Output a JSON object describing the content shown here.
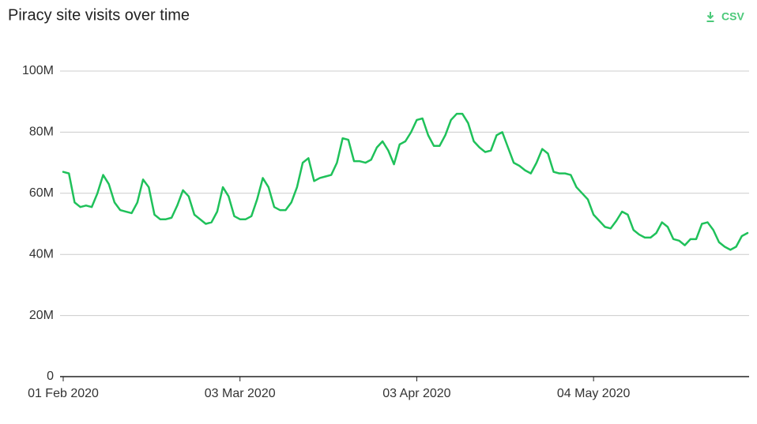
{
  "chart_data": {
    "type": "line",
    "title": "Piracy site visits over time",
    "download_label": "CSV",
    "color": "#1fc15a",
    "grid": true,
    "x": [
      "2020-02-01",
      "2020-02-02",
      "2020-02-03",
      "2020-02-04",
      "2020-02-05",
      "2020-02-06",
      "2020-02-07",
      "2020-02-08",
      "2020-02-09",
      "2020-02-10",
      "2020-02-11",
      "2020-02-12",
      "2020-02-13",
      "2020-02-14",
      "2020-02-15",
      "2020-02-16",
      "2020-02-17",
      "2020-02-18",
      "2020-02-19",
      "2020-02-20",
      "2020-02-21",
      "2020-02-22",
      "2020-02-23",
      "2020-02-24",
      "2020-02-25",
      "2020-02-26",
      "2020-02-27",
      "2020-02-28",
      "2020-02-29",
      "2020-03-01",
      "2020-03-02",
      "2020-03-03",
      "2020-03-04",
      "2020-03-05",
      "2020-03-06",
      "2020-03-07",
      "2020-03-08",
      "2020-03-09",
      "2020-03-10",
      "2020-03-11",
      "2020-03-12",
      "2020-03-13",
      "2020-03-14",
      "2020-03-15",
      "2020-03-16",
      "2020-03-17",
      "2020-03-18",
      "2020-03-19",
      "2020-03-20",
      "2020-03-21",
      "2020-03-22",
      "2020-03-23",
      "2020-03-24",
      "2020-03-25",
      "2020-03-26",
      "2020-03-27",
      "2020-03-28",
      "2020-03-29",
      "2020-03-30",
      "2020-03-31",
      "2020-04-01",
      "2020-04-02",
      "2020-04-03",
      "2020-04-04",
      "2020-04-05",
      "2020-04-06",
      "2020-04-07",
      "2020-04-08",
      "2020-04-09",
      "2020-04-10",
      "2020-04-11",
      "2020-04-12",
      "2020-04-13",
      "2020-04-14",
      "2020-04-15",
      "2020-04-16",
      "2020-04-17",
      "2020-04-18",
      "2020-04-19",
      "2020-04-20",
      "2020-04-21",
      "2020-04-22",
      "2020-04-23",
      "2020-04-24",
      "2020-04-25",
      "2020-04-26",
      "2020-04-27",
      "2020-04-28",
      "2020-04-29",
      "2020-04-30",
      "2020-05-01",
      "2020-05-02",
      "2020-05-03",
      "2020-05-04",
      "2020-05-05",
      "2020-05-06",
      "2020-05-07",
      "2020-05-08",
      "2020-05-09",
      "2020-05-10",
      "2020-05-11",
      "2020-05-12",
      "2020-05-13",
      "2020-05-14",
      "2020-05-15",
      "2020-05-16",
      "2020-05-17",
      "2020-05-18",
      "2020-05-19",
      "2020-05-20",
      "2020-05-21",
      "2020-05-22",
      "2020-05-23",
      "2020-05-24",
      "2020-05-25",
      "2020-05-26",
      "2020-05-27",
      "2020-05-28",
      "2020-05-29",
      "2020-05-30",
      "2020-05-31"
    ],
    "values": [
      67000000,
      66500000,
      57000000,
      55500000,
      56000000,
      55500000,
      60000000,
      66000000,
      63000000,
      57000000,
      54500000,
      54000000,
      53500000,
      57000000,
      64500000,
      62000000,
      53000000,
      51500000,
      51500000,
      52000000,
      56000000,
      61000000,
      59000000,
      53000000,
      51500000,
      50000000,
      50500000,
      54000000,
      62000000,
      59000000,
      52500000,
      51500000,
      51500000,
      52500000,
      58000000,
      65000000,
      62000000,
      55500000,
      54500000,
      54500000,
      57000000,
      62000000,
      70000000,
      71500000,
      64000000,
      65000000,
      65500000,
      66000000,
      70000000,
      78000000,
      77500000,
      70500000,
      70500000,
      70000000,
      71000000,
      75000000,
      77000000,
      74000000,
      69500000,
      76000000,
      77000000,
      80000000,
      84000000,
      84500000,
      79000000,
      75500000,
      75500000,
      79000000,
      84000000,
      86000000,
      86000000,
      83000000,
      77000000,
      75000000,
      73500000,
      74000000,
      79000000,
      80000000,
      75000000,
      70000000,
      69000000,
      67500000,
      66500000,
      70000000,
      74500000,
      73000000,
      67000000,
      66500000,
      66500000,
      66000000,
      62000000,
      60000000,
      58000000,
      53000000,
      51000000,
      49000000,
      48500000,
      51000000,
      54000000,
      53000000,
      48000000,
      46500000,
      45500000,
      45500000,
      47000000,
      50500000,
      49000000,
      45000000,
      44500000,
      43000000,
      45000000,
      45000000,
      50000000,
      50500000,
      48000000,
      44000000,
      42500000,
      41500000,
      42500000,
      46000000,
      47000000
    ],
    "xlim": [
      "2020-02-01",
      "2020-05-31"
    ],
    "xticks": [
      {
        "value": "2020-02-01",
        "label": "01 Feb 2020"
      },
      {
        "value": "2020-03-03",
        "label": "03 Mar 2020"
      },
      {
        "value": "2020-04-03",
        "label": "03 Apr 2020"
      },
      {
        "value": "2020-05-04",
        "label": "04 May 2020"
      }
    ],
    "ylim": [
      0,
      100000000
    ],
    "yticks": [
      0,
      {
        "value": 20000000,
        "label": "20M"
      },
      {
        "value": 40000000,
        "label": "40M"
      },
      {
        "value": 60000000,
        "label": "60M"
      },
      {
        "value": 80000000,
        "label": "80M"
      },
      {
        "value": 100000000,
        "label": "100M"
      }
    ]
  }
}
